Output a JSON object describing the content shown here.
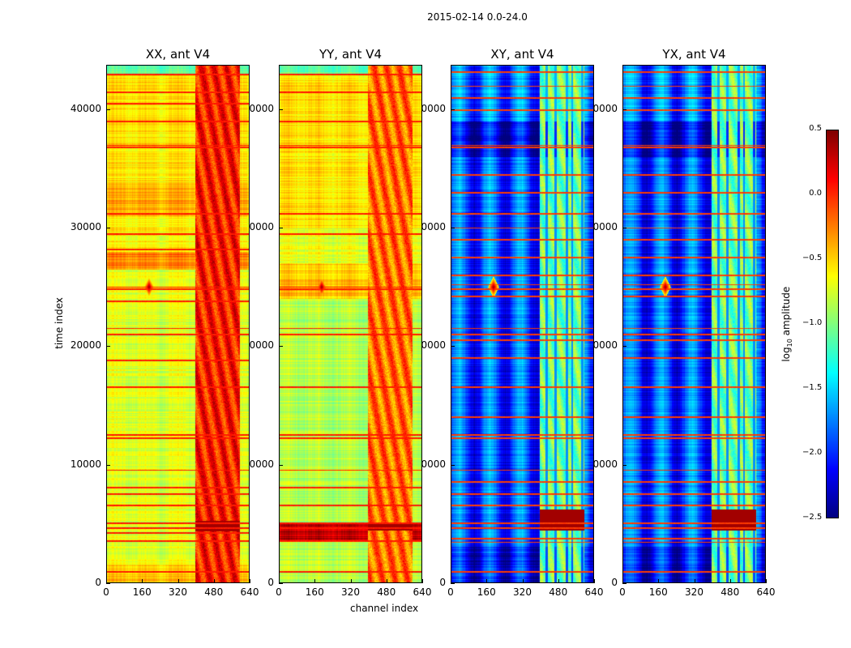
{
  "chart_data": {
    "type": "heatmap",
    "title": "2015-02-14 0.0-24.0",
    "xlabel": "channel index",
    "ylabel": "time index",
    "xlim": [
      0,
      640
    ],
    "ylim": [
      0,
      43750
    ],
    "xticks": [
      "0",
      "160",
      "320",
      "480",
      "640"
    ],
    "xtick_values": [
      0,
      160,
      320,
      480,
      640
    ],
    "yticks": [
      "0",
      "10000",
      "20000",
      "30000",
      "40000"
    ],
    "ytick_values": [
      0,
      10000,
      20000,
      30000,
      40000
    ],
    "colormap": "jet",
    "colorbar": {
      "label_main": "log",
      "label_sub": "10",
      "label_rest": " amplitude",
      "range": [
        -2.5,
        0.5
      ],
      "ticks": [
        "0.5",
        "0.0",
        "−0.5",
        "−1.0",
        "−1.5",
        "−2.0",
        "−2.5"
      ],
      "tick_values": [
        0.5,
        0.0,
        -0.5,
        -1.0,
        -1.5,
        -2.0,
        -2.5
      ]
    },
    "panels": [
      {
        "title": "XX, ant V4",
        "base": -0.62,
        "rfi_channels": [
          400,
          600
        ],
        "rfi_level": 0.05,
        "time_regions": [
          [
            0,
            1500,
            -0.45
          ],
          [
            1500,
            26500,
            -0.72
          ],
          [
            26500,
            28000,
            -0.25
          ],
          [
            28000,
            31000,
            -0.6
          ],
          [
            31000,
            33500,
            -0.4
          ],
          [
            33500,
            43000,
            -0.55
          ],
          [
            43000,
            43750,
            -1.1
          ]
        ],
        "stripes": [
          43000,
          41500,
          40500,
          39000,
          37000,
          36800,
          31200,
          29500,
          28200,
          25000,
          24800,
          23800,
          21500,
          21000,
          18800,
          16500,
          12500,
          12200,
          9500,
          8000,
          7500,
          6500,
          5000,
          4600,
          4200,
          3500,
          900
        ],
        "stripe_level": 0.05,
        "hot_band": [
          4300,
          5200
        ],
        "flare": [
          25000,
          190
        ],
        "vertical_gaps": [],
        "column_ripple": 0.05
      },
      {
        "title": "YY, ant V4",
        "base": -0.8,
        "rfi_channels": [
          400,
          600
        ],
        "rfi_level": -0.2,
        "time_regions": [
          [
            0,
            3500,
            -0.85
          ],
          [
            3500,
            5000,
            0.3
          ],
          [
            5000,
            24000,
            -0.85
          ],
          [
            24000,
            27000,
            -0.45
          ],
          [
            27000,
            30000,
            -0.7
          ],
          [
            30000,
            43000,
            -0.55
          ],
          [
            43000,
            43750,
            -1.1
          ]
        ],
        "stripes": [
          43000,
          41500,
          39000,
          37000,
          36800,
          31200,
          29500,
          25000,
          24800,
          21500,
          21000,
          16500,
          12500,
          12200,
          9500,
          8000,
          6500,
          5000,
          4600,
          3500,
          900
        ],
        "stripe_level": 0.05,
        "hot_band": [
          4400,
          5000
        ],
        "flare": [
          25000,
          190
        ],
        "vertical_gaps": [],
        "column_ripple": 0.05
      },
      {
        "title": "XY, ant V4",
        "base": -1.9,
        "rfi_channels": [
          400,
          600
        ],
        "rfi_level": -1.05,
        "time_regions": [
          [
            0,
            3000,
            -2.1
          ],
          [
            3000,
            36000,
            -1.9
          ],
          [
            36000,
            39000,
            -2.2
          ],
          [
            39000,
            43750,
            -1.8
          ]
        ],
        "stripes": [
          43200,
          42000,
          41000,
          40000,
          37000,
          36800,
          34500,
          33000,
          31200,
          30000,
          29000,
          27500,
          26000,
          25200,
          24800,
          24200,
          21500,
          21000,
          20500,
          19000,
          16500,
          14000,
          12500,
          12200,
          9500,
          8500,
          7500,
          6500,
          5000,
          4600,
          3700,
          3400,
          900
        ],
        "stripe_level": -0.05,
        "hot_band": [
          4400,
          6200
        ],
        "flare": [
          25000,
          190
        ],
        "vertical_gaps": [
          430,
          470,
          520,
          545,
          590
        ],
        "column_ripple": 0.35
      },
      {
        "title": "YX, ant V4",
        "base": -1.9,
        "rfi_channels": [
          400,
          600
        ],
        "rfi_level": -1.05,
        "time_regions": [
          [
            0,
            3000,
            -2.1
          ],
          [
            3000,
            36000,
            -1.9
          ],
          [
            36000,
            39000,
            -2.2
          ],
          [
            39000,
            43750,
            -1.8
          ]
        ],
        "stripes": [
          43200,
          42000,
          41000,
          40000,
          37000,
          36800,
          34500,
          33000,
          31200,
          30000,
          29000,
          27500,
          26000,
          25200,
          24800,
          24200,
          21500,
          21000,
          20500,
          19000,
          16500,
          14000,
          12500,
          12200,
          9500,
          8500,
          7500,
          6500,
          5000,
          4600,
          3700,
          3400,
          900
        ],
        "stripe_level": -0.05,
        "hot_band": [
          4400,
          6200
        ],
        "flare": [
          25000,
          190
        ],
        "vertical_gaps": [
          430,
          470,
          520,
          545,
          590
        ],
        "column_ripple": 0.35
      }
    ]
  }
}
